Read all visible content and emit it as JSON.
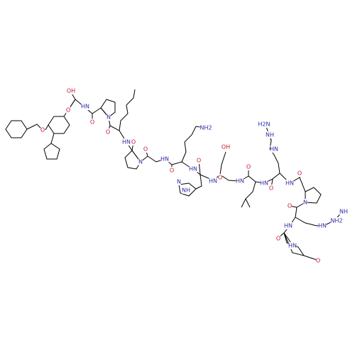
{
  "atom_labels": [
    "OH",
    "O",
    "HN",
    "O",
    "N",
    "O",
    "O",
    "HN",
    "O",
    "NH2",
    "N",
    "O",
    "HN",
    "O",
    "HN",
    "O",
    "OH",
    "N",
    "NH",
    "HN",
    "O",
    "HN",
    "O",
    "HN",
    "O",
    "NH",
    "H2N",
    "HN",
    "HN",
    "O",
    "N",
    "O",
    "HN",
    "NH",
    "NH2",
    "HN",
    "O",
    "HN",
    "O"
  ]
}
